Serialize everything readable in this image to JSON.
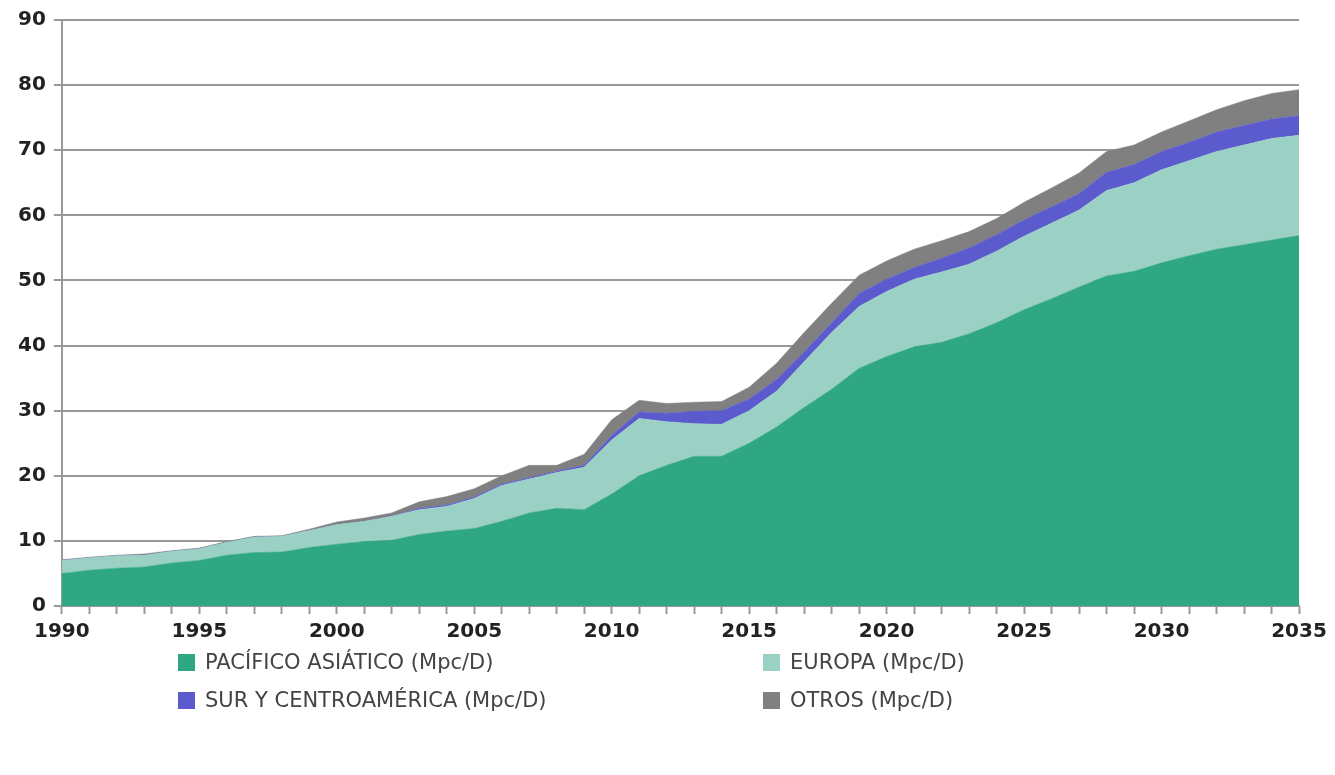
{
  "chart_data": {
    "type": "area",
    "stacked": true,
    "x": [
      1990,
      1991,
      1992,
      1993,
      1994,
      1995,
      1996,
      1997,
      1998,
      1999,
      2000,
      2001,
      2002,
      2003,
      2004,
      2005,
      2006,
      2007,
      2008,
      2009,
      2010,
      2011,
      2012,
      2013,
      2014,
      2015,
      2016,
      2017,
      2018,
      2019,
      2020,
      2021,
      2022,
      2023,
      2024,
      2025,
      2026,
      2027,
      2028,
      2029,
      2030,
      2031,
      2032,
      2033,
      2034,
      2035
    ],
    "series": [
      {
        "name": "PACÍFICO ASIÁTICO (Mpc/D)",
        "color": "#30a783",
        "values": [
          5.0,
          5.5,
          5.8,
          6.0,
          6.6,
          7.0,
          7.8,
          8.2,
          8.3,
          9.0,
          9.5,
          9.9,
          10.1,
          11.0,
          11.5,
          11.9,
          13.0,
          14.3,
          15.0,
          14.8,
          17.2,
          20.0,
          21.6,
          23.0,
          23.0,
          25.0,
          27.5,
          30.5,
          33.3,
          36.5,
          38.3,
          39.8,
          40.5,
          41.8,
          43.5,
          45.5,
          47.2,
          49.0,
          50.7,
          51.4,
          52.7,
          53.8,
          54.8,
          55.5,
          56.2,
          56.9
        ]
      },
      {
        "name": "EUROPA (Mpc/D)",
        "color": "#9bd1c5",
        "values": [
          2.0,
          1.9,
          1.9,
          1.8,
          1.8,
          1.8,
          2.0,
          2.4,
          2.4,
          2.6,
          3.0,
          3.1,
          3.7,
          3.8,
          3.8,
          4.6,
          5.5,
          5.2,
          5.5,
          6.5,
          8.3,
          8.8,
          6.7,
          5.0,
          4.9,
          5.0,
          5.5,
          7.0,
          8.7,
          9.5,
          10.0,
          10.4,
          10.8,
          10.7,
          11.0,
          11.3,
          11.6,
          11.8,
          13.1,
          13.6,
          14.3,
          14.6,
          15.0,
          15.3,
          15.6,
          15.4
        ]
      },
      {
        "name": "SUR Y CENTROAMÉRICA (Mpc/D)",
        "color": "#5b5bce",
        "values": [
          0,
          0,
          0,
          0,
          0,
          0,
          0,
          0,
          0,
          0,
          0,
          0,
          0,
          0.2,
          0.2,
          0.2,
          0.2,
          0.2,
          0.2,
          0.3,
          0.7,
          1.0,
          1.3,
          1.9,
          2.1,
          1.8,
          1.8,
          1.5,
          1.5,
          2.0,
          1.9,
          1.8,
          2.1,
          2.5,
          2.5,
          2.5,
          2.5,
          2.5,
          2.8,
          2.8,
          2.8,
          2.8,
          3.0,
          3.0,
          3.0,
          3.0
        ]
      },
      {
        "name": "OTROS (Mpc/D)",
        "color": "#808080",
        "values": [
          0.1,
          0.1,
          0.1,
          0.2,
          0.1,
          0.1,
          0.1,
          0.1,
          0.1,
          0.2,
          0.4,
          0.5,
          0.5,
          1.0,
          1.3,
          1.3,
          1.3,
          1.9,
          0.9,
          1.7,
          2.4,
          1.8,
          1.5,
          1.4,
          1.4,
          1.8,
          2.5,
          3.0,
          3.0,
          2.8,
          2.8,
          2.8,
          2.7,
          2.5,
          2.5,
          2.7,
          2.9,
          3.2,
          3.2,
          3.0,
          3.0,
          3.3,
          3.4,
          3.8,
          3.9,
          4.0
        ]
      }
    ],
    "xlim": [
      1990,
      2035
    ],
    "xticks": [
      1990,
      {
        "value": 1991,
        "label": null
      },
      {
        "value": 1992,
        "label": null
      },
      {
        "value": 1993,
        "label": null
      },
      {
        "value": 1994,
        "label": null
      },
      1995,
      {
        "value": 1996,
        "label": null
      },
      {
        "value": 1997,
        "label": null
      },
      {
        "value": 1998,
        "label": null
      },
      {
        "value": 1999,
        "label": null
      },
      2000,
      {
        "value": 2001,
        "label": null
      },
      {
        "value": 2002,
        "label": null
      },
      {
        "value": 2003,
        "label": null
      },
      {
        "value": 2004,
        "label": null
      },
      2005,
      {
        "value": 2006,
        "label": null
      },
      {
        "value": 2007,
        "label": null
      },
      {
        "value": 2008,
        "label": null
      },
      {
        "value": 2009,
        "label": null
      },
      2010,
      {
        "value": 2011,
        "label": null
      },
      {
        "value": 2012,
        "label": null
      },
      {
        "value": 2013,
        "label": null
      },
      {
        "value": 2014,
        "label": null
      },
      2015,
      {
        "value": 2016,
        "label": null
      },
      {
        "value": 2017,
        "label": null
      },
      {
        "value": 2018,
        "label": null
      },
      {
        "value": 2019,
        "label": null
      },
      2020,
      {
        "value": 2021,
        "label": null
      },
      {
        "value": 2022,
        "label": null
      },
      {
        "value": 2023,
        "label": null
      },
      {
        "value": 2024,
        "label": null
      },
      2025,
      {
        "value": 2026,
        "label": null
      },
      {
        "value": 2027,
        "label": null
      },
      {
        "value": 2028,
        "label": null
      },
      {
        "value": 2029,
        "label": null
      },
      2030,
      {
        "value": 2031,
        "label": null
      },
      {
        "value": 2032,
        "label": null
      },
      {
        "value": 2033,
        "label": null
      },
      {
        "value": 2034,
        "label": null
      },
      2035
    ],
    "ylim": [
      0,
      90
    ],
    "yticks": [
      0,
      10,
      20,
      30,
      40,
      50,
      60,
      70,
      80,
      90
    ],
    "grid": "y",
    "legend": "bottom",
    "marker": "none"
  }
}
